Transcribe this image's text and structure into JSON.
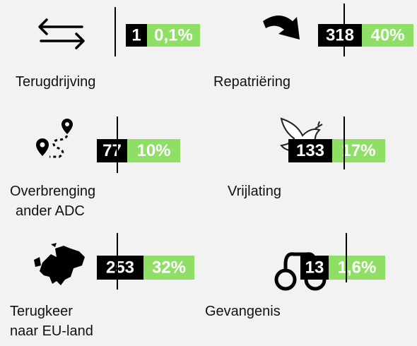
{
  "items": [
    {
      "label": [
        "Terugdrijving"
      ],
      "count": "1",
      "percent": "0,1%"
    },
    {
      "label": [
        "Repatriëring"
      ],
      "count": "318",
      "percent": "40%"
    },
    {
      "label": [
        "Overbrenging",
        "ander ADC"
      ],
      "count": "77",
      "percent": "10%"
    },
    {
      "label": [
        "Vrijlating"
      ],
      "count": "133",
      "percent": "17%"
    },
    {
      "label": [
        "Terugkeer",
        "naar EU-land"
      ],
      "count": "253",
      "percent": "32%"
    },
    {
      "label": [
        "Gevangenis"
      ],
      "count": "13",
      "percent": "1,6%"
    }
  ]
}
